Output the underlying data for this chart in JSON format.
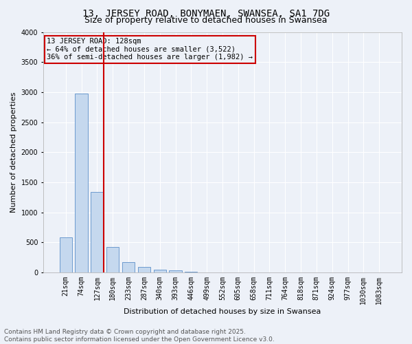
{
  "title_line1": "13, JERSEY ROAD, BONYMAEN, SWANSEA, SA1 7DG",
  "title_line2": "Size of property relative to detached houses in Swansea",
  "xlabel": "Distribution of detached houses by size in Swansea",
  "ylabel": "Number of detached properties",
  "categories": [
    "21sqm",
    "74sqm",
    "127sqm",
    "180sqm",
    "233sqm",
    "287sqm",
    "340sqm",
    "393sqm",
    "446sqm",
    "499sqm",
    "552sqm",
    "605sqm",
    "658sqm",
    "711sqm",
    "764sqm",
    "818sqm",
    "871sqm",
    "924sqm",
    "977sqm",
    "1030sqm",
    "1083sqm"
  ],
  "values": [
    585,
    2980,
    1340,
    420,
    175,
    90,
    50,
    30,
    10,
    2,
    0,
    0,
    0,
    0,
    0,
    0,
    0,
    0,
    0,
    0,
    0
  ],
  "bar_color": "#c5d8ee",
  "bar_edge_color": "#5b8fc9",
  "vline_color": "#cc0000",
  "vline_index": 2,
  "ylim": [
    0,
    4000
  ],
  "yticks": [
    0,
    500,
    1000,
    1500,
    2000,
    2500,
    3000,
    3500,
    4000
  ],
  "annotation_text": "13 JERSEY ROAD: 128sqm\n← 64% of detached houses are smaller (3,522)\n36% of semi-detached houses are larger (1,982) →",
  "annotation_box_color": "#cc0000",
  "background_color": "#edf1f8",
  "grid_color": "#ffffff",
  "footer_line1": "Contains HM Land Registry data © Crown copyright and database right 2025.",
  "footer_line2": "Contains public sector information licensed under the Open Government Licence v3.0.",
  "title_fontsize": 10,
  "subtitle_fontsize": 9,
  "axis_label_fontsize": 8,
  "tick_fontsize": 7,
  "annotation_fontsize": 7.5,
  "footer_fontsize": 6.5
}
